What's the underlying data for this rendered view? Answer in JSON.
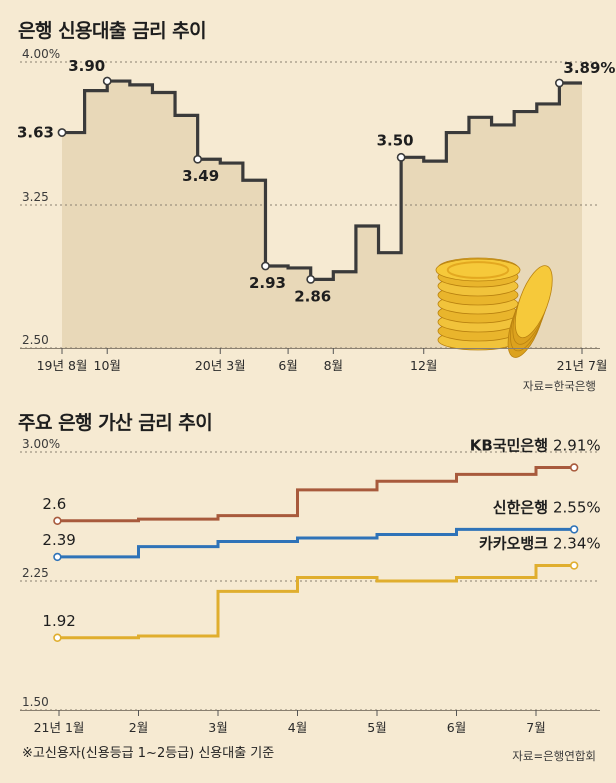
{
  "chart_data": [
    {
      "type": "line",
      "title": "은행 신용대출 금리 추이",
      "unit": "%",
      "step": true,
      "ylim": [
        2.5,
        4.0
      ],
      "yticks": [
        "4.00%",
        "3.25",
        "2.50"
      ],
      "ytick_values": [
        4.0,
        3.25,
        2.5
      ],
      "x_index": [
        0,
        1,
        2,
        3,
        4,
        5,
        6,
        7,
        8,
        9,
        10,
        11,
        12,
        13,
        14,
        15,
        16,
        17,
        18,
        19,
        20,
        21,
        22,
        23
      ],
      "values": [
        3.63,
        3.85,
        3.9,
        3.88,
        3.84,
        3.72,
        3.49,
        3.47,
        3.38,
        2.93,
        2.92,
        2.86,
        2.9,
        3.14,
        3.0,
        3.5,
        3.48,
        3.63,
        3.71,
        3.67,
        3.74,
        3.78,
        3.89,
        3.89
      ],
      "xtick_labels": [
        {
          "label": "19년 8월",
          "index": 0
        },
        {
          "label": "10월",
          "index": 2
        },
        {
          "label": "20년 3월",
          "index": 7
        },
        {
          "label": "6월",
          "index": 10
        },
        {
          "label": "8월",
          "index": 12
        },
        {
          "label": "12월",
          "index": 16
        },
        {
          "label": "21년 7월",
          "index": 23
        }
      ],
      "data_labels": [
        {
          "text": "3.63",
          "index": 0,
          "value": 3.63
        },
        {
          "text": "3.90",
          "index": 2,
          "value": 3.9
        },
        {
          "text": "3.49",
          "index": 6,
          "value": 3.49
        },
        {
          "text": "2.93",
          "index": 9,
          "value": 2.93
        },
        {
          "text": "2.86",
          "index": 11,
          "value": 2.86
        },
        {
          "text": "3.50",
          "index": 15,
          "value": 3.5
        },
        {
          "text": "3.89%",
          "index": 22,
          "value": 3.89
        }
      ],
      "source": "자료=한국은행",
      "colors": {
        "line": "#3a3a3a",
        "fill": "#e8d8b8",
        "grid": "#8a8070"
      }
    },
    {
      "type": "line",
      "title": "주요 은행 가산 금리 추이",
      "unit": "%",
      "step": true,
      "ylim": [
        1.5,
        3.0
      ],
      "yticks": [
        "3.00%",
        "2.25",
        "1.50"
      ],
      "ytick_values": [
        3.0,
        2.25,
        1.5
      ],
      "categories": [
        "21년 1월",
        "2월",
        "3월",
        "4월",
        "5월",
        "6월",
        "7월"
      ],
      "x": [
        1,
        2,
        3,
        4,
        5,
        6,
        7
      ],
      "series": [
        {
          "name": "KB국민은행",
          "label_value": "2.91%",
          "start_label": "2.6",
          "color": "#a85a3c",
          "x": [
            0.98,
            2,
            3,
            4,
            5,
            6,
            7,
            7.48
          ],
          "values": [
            2.6,
            2.61,
            2.63,
            2.78,
            2.83,
            2.87,
            2.91,
            2.91
          ]
        },
        {
          "name": "신한은행",
          "label_value": "2.55%",
          "start_label": "2.39",
          "color": "#2f73b8",
          "x": [
            0.98,
            2,
            3,
            4,
            5,
            6,
            7,
            7.48
          ],
          "values": [
            2.39,
            2.45,
            2.48,
            2.5,
            2.52,
            2.55,
            2.55,
            2.55
          ]
        },
        {
          "name": "카카오뱅크",
          "label_value": "2.34%",
          "start_label": "1.92",
          "color": "#e0ae2e",
          "x": [
            0.98,
            2,
            3,
            4,
            5,
            6,
            7,
            7.48
          ],
          "values": [
            1.92,
            1.93,
            2.19,
            2.27,
            2.25,
            2.27,
            2.34,
            2.34
          ]
        }
      ],
      "source": "자료=은행연합회",
      "footnote": "※고신용자(신용등급 1~2등급) 신용대출 기준"
    }
  ]
}
